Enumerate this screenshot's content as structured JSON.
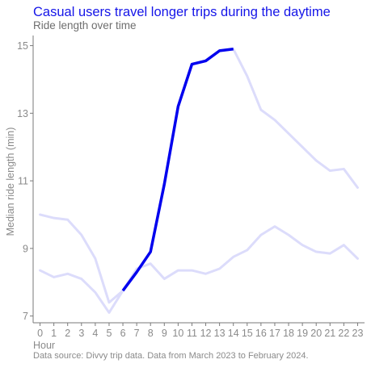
{
  "chart_data": {
    "type": "line",
    "title": "Casual users travel longer trips during the daytime",
    "subtitle": "Ride length over time",
    "xlabel": "Hour",
    "ylabel": "Median ride length (min)",
    "caption": "Data source: Divvy trip data. Data from March 2023 to February 2024.",
    "x": [
      0,
      1,
      2,
      3,
      4,
      5,
      6,
      7,
      8,
      9,
      10,
      11,
      12,
      13,
      14,
      15,
      16,
      17,
      18,
      19,
      20,
      21,
      22,
      23
    ],
    "xlim": [
      -0.5,
      23.5
    ],
    "ylim": [
      6.8,
      15.3
    ],
    "yticks": [
      7,
      9,
      11,
      13,
      15
    ],
    "grid": false,
    "legend": "none",
    "series": [
      {
        "values": [
          10.0,
          9.9,
          9.85,
          9.4,
          8.7,
          7.4,
          7.75,
          8.3,
          8.9,
          10.9,
          13.2,
          14.45,
          14.55,
          14.85,
          14.9,
          14.1,
          13.1,
          12.8,
          12.4,
          12.0,
          11.6,
          11.3,
          11.35,
          10.8
        ],
        "highlight_range": [
          6,
          14
        ],
        "color": "#0000ee",
        "dim_color": "#dcdcfb"
      },
      {
        "values": [
          8.35,
          8.15,
          8.25,
          8.1,
          7.7,
          7.1,
          7.75,
          8.4,
          8.55,
          8.1,
          8.35,
          8.35,
          8.25,
          8.4,
          8.75,
          8.95,
          9.4,
          9.65,
          9.4,
          9.1,
          8.9,
          8.85,
          9.1,
          8.7
        ],
        "color": "#dcdcfb"
      }
    ]
  }
}
